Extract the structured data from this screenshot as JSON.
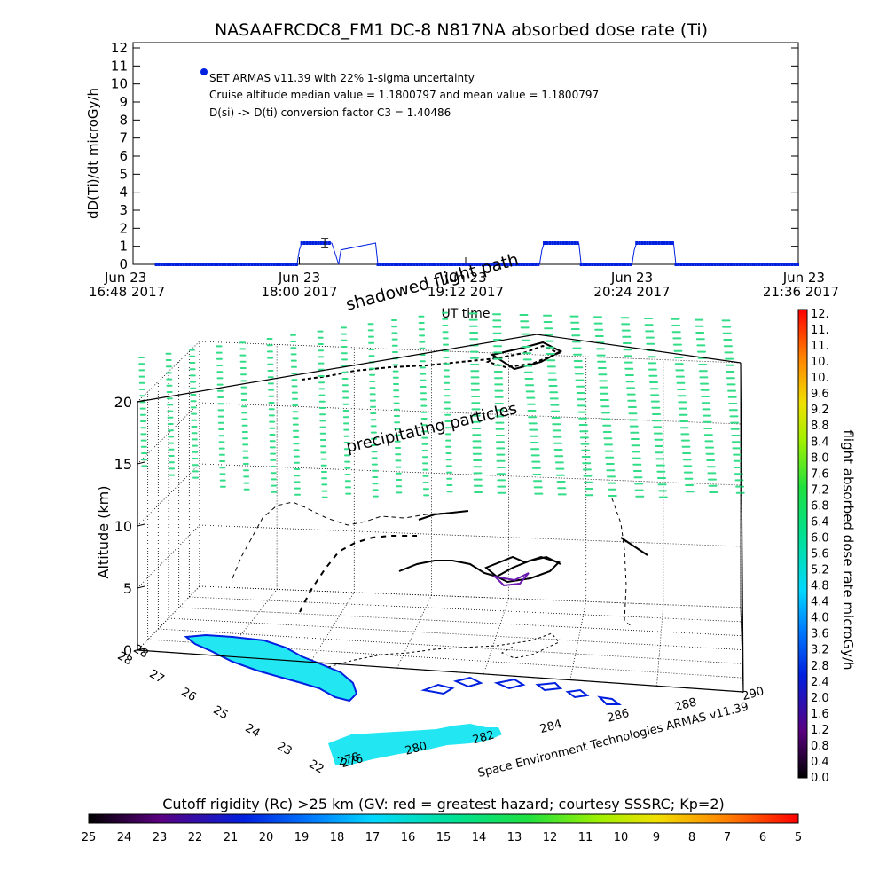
{
  "title": "NASAAFRCDC8_FM1 DC-8    N817NA absorbed dose rate (Ti)",
  "chart_data": [
    {
      "type": "line",
      "ylabel": "dD(Ti)/dt microGy/h",
      "xlabel": "UT time",
      "ylim": [
        0,
        12
      ],
      "y_ticks": [
        "0",
        "1",
        "2",
        "3",
        "4",
        "5",
        "6",
        "7",
        "8",
        "9",
        "10",
        "11",
        "12"
      ],
      "x_ticks": [
        {
          "date": "Jun 23",
          "time": "16:48 2017"
        },
        {
          "date": "Jun 23",
          "time": "18:00 2017"
        },
        {
          "date": "Jun 23",
          "time": "19:12 2017"
        },
        {
          "date": "Jun 23",
          "time": "20:24 2017"
        },
        {
          "date": "Jun 23",
          "time": "21:36 2017"
        }
      ],
      "annotations": [
        "SET ARMAS v11.39 with 22% 1-sigma uncertainty",
        "Cruise altitude median value = 1.1800797 and mean value = 1.1800797",
        "D(si) -> D(ti) conversion factor C3 = 1.40486"
      ],
      "series": [
        {
          "color": "#0020e0",
          "x": [
            "16:58",
            "17:30",
            "17:59",
            "18:00",
            "18:01",
            "18:14",
            "18:15",
            "18:17",
            "18:18",
            "18:33",
            "18:34",
            "18:59",
            "19:44",
            "19:45",
            "19:46",
            "20:01",
            "20:02",
            "20:24",
            "20:25",
            "20:26",
            "20:42",
            "20:43",
            "21:36"
          ],
          "y": [
            0,
            0,
            0,
            0.8,
            1.18,
            1.18,
            0.8,
            0,
            0.8,
            1.18,
            0,
            0,
            0,
            0.8,
            1.18,
            1.18,
            0,
            0,
            0.8,
            1.18,
            1.18,
            0,
            0
          ]
        }
      ],
      "error_bar": {
        "x": "18:11",
        "y": 1.18,
        "err": 0.26
      }
    },
    {
      "type": "scatter",
      "zlabel": "Altitude (km)",
      "z_ticks": [
        "0",
        "5",
        "10",
        "15",
        "20"
      ],
      "lat_ticks": [
        "28",
        "27",
        "26",
        "25",
        "24",
        "23",
        "22"
      ],
      "lon_ticks": [
        "278",
        "280",
        "282",
        "284",
        "286",
        "288",
        "290"
      ],
      "lon_start_label": "276",
      "labels": [
        "shadowed flight path",
        "precipitating particles"
      ],
      "footer": "Space Environment Technologies ARMAS v11.39"
    }
  ],
  "colorbar_right": {
    "label": "flight absorbed dose rate microGy/h",
    "ticks": [
      "0.0",
      "0.4",
      "0.8",
      "1.2",
      "1.6",
      "2.0",
      "2.4",
      "2.8",
      "3.2",
      "3.6",
      "4.0",
      "4.4",
      "4.8",
      "5.2",
      "5.6",
      "6.0",
      "6.4",
      "6.8",
      "7.2",
      "7.6",
      "8.0",
      "8.4",
      "8.8",
      "9.2",
      "9.6",
      "10.",
      "10.",
      "11.",
      "11.",
      "12."
    ]
  },
  "colorbar_bottom": {
    "label": "Cutoff rigidity (Rc) >25 km (GV: red = greatest hazard; courtesy SSSRC; Kp=2)",
    "ticks": [
      "25",
      "24",
      "23",
      "22",
      "21",
      "20",
      "19",
      "18",
      "17",
      "16",
      "15",
      "14",
      "13",
      "12",
      "11",
      "10",
      "9",
      "8",
      "7",
      "6",
      "5"
    ]
  },
  "colors": {
    "series": "#0020e0",
    "particles": "#33dd88",
    "land": "#22e6f2"
  }
}
